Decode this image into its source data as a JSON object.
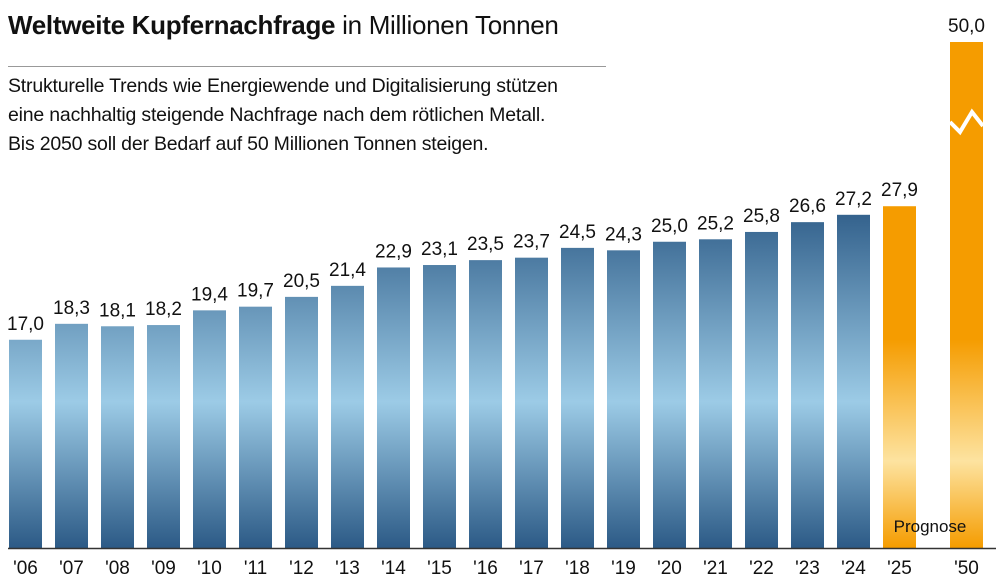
{
  "title": {
    "bold": "Weltweite Kupfernachfrage",
    "rest": "in Millionen Tonnen"
  },
  "subtitle": [
    "Strukturelle Trends wie Energiewende und Digitalisierung stützen",
    "eine nachhaltig steigende Nachfrage nach dem rötlichen Metall.",
    "Bis 2050 soll der Bedarf auf 50 Millionen Tonnen steigen."
  ],
  "colors": {
    "historic_dark": "#2c5a86",
    "historic_light": "#9ccbe6",
    "forecast": "#f59c00",
    "forecast_light": "#fde3a0"
  },
  "chart_data": {
    "type": "bar",
    "categories": [
      "'06",
      "'07",
      "'08",
      "'09",
      "'10",
      "'11",
      "'12",
      "'13",
      "'14",
      "'15",
      "'16",
      "'17",
      "'18",
      "'19",
      "'20",
      "'21",
      "'22",
      "'23",
      "'24",
      "'25",
      "'50"
    ],
    "values": [
      17.0,
      18.3,
      18.1,
      18.2,
      19.4,
      19.7,
      20.5,
      21.4,
      22.9,
      23.1,
      23.5,
      23.7,
      24.5,
      24.3,
      25.0,
      25.2,
      25.8,
      26.6,
      27.2,
      27.9,
      50.0
    ],
    "labels": [
      "17,0",
      "18,3",
      "18,1",
      "18,2",
      "19,4",
      "19,7",
      "20,5",
      "21,4",
      "22,9",
      "23,1",
      "23,5",
      "23,7",
      "24,5",
      "24,3",
      "25,0",
      "25,2",
      "25,8",
      "26,6",
      "27,2",
      "27,9",
      "50,0"
    ],
    "forecast": [
      false,
      false,
      false,
      false,
      false,
      false,
      false,
      false,
      false,
      false,
      false,
      false,
      false,
      false,
      false,
      false,
      false,
      false,
      false,
      true,
      true
    ],
    "axis_break_on": "'50",
    "annotation": "Prognose",
    "ylim": [
      0,
      50
    ],
    "grid": false
  }
}
